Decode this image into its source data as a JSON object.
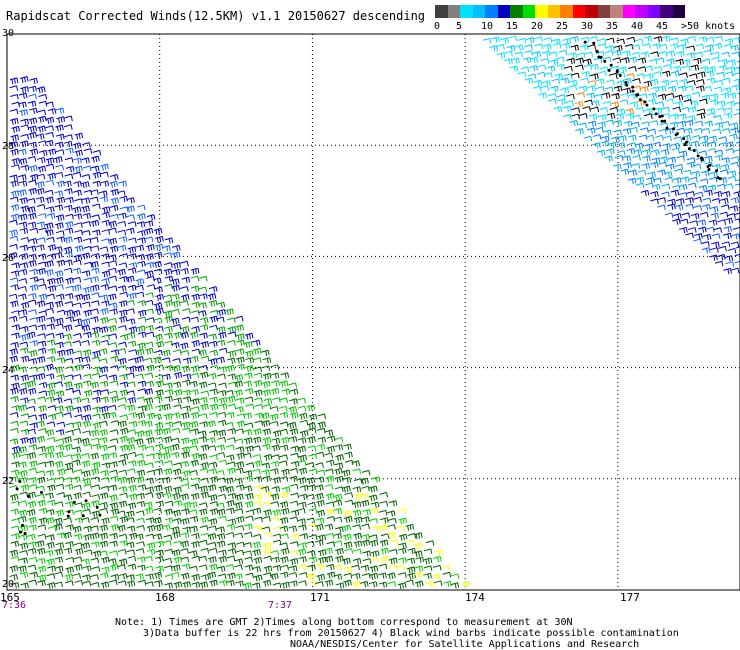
{
  "title": "Rapidscat Corrected Winds(12.5KM) v1.1 20150627 descending",
  "colorbar": {
    "colors": [
      "#404040",
      "#808080",
      "#00e0ff",
      "#00c0ff",
      "#0080ff",
      "#0000c0",
      "#008000",
      "#00e000",
      "#ffff00",
      "#ffc000",
      "#ff8000",
      "#ff0000",
      "#c00000",
      "#804040",
      "#c08080",
      "#ff00ff",
      "#c000ff",
      "#8000ff",
      "#400080",
      "#200040"
    ],
    "labels": [
      "0",
      "5",
      "10",
      "15",
      "20",
      "25",
      "30",
      "35",
      "40",
      "45",
      ">50 knots"
    ]
  },
  "lat_labels": [
    "30",
    "28",
    "26",
    "24",
    "22",
    "20"
  ],
  "lon_labels": [
    "165",
    "168",
    "171",
    "174",
    "177"
  ],
  "time_labels": [
    "7:36",
    "7:37"
  ],
  "notes": [
    "Note: 1) Times are GMT 2)Times along bottom correspond to measurement at 30N",
    "3)Data buffer is 22 hrs from 20150627 4) Black wind barbs indicate possible contamination",
    "NOAA/NESDIS/Center for Satellite Applications and Research"
  ],
  "map_data": {
    "lat_range": [
      20,
      30
    ],
    "lon_range": [
      165,
      179.4
    ]
  }
}
